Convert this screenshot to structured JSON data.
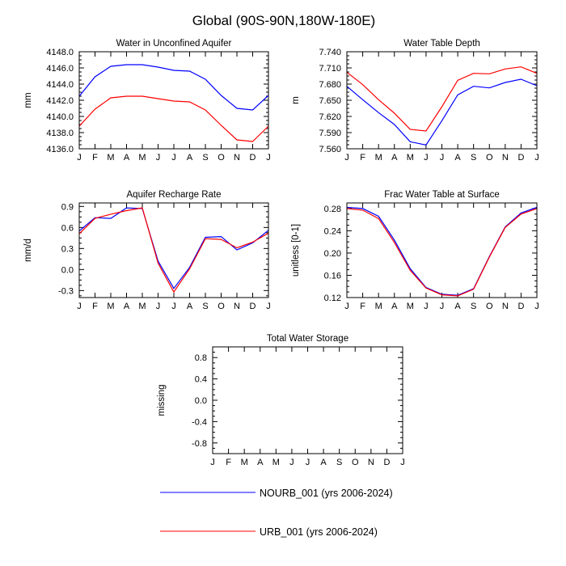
{
  "figure_title": "Global (90S-90N,180W-180E)",
  "months": [
    "J",
    "F",
    "M",
    "A",
    "M",
    "J",
    "J",
    "A",
    "S",
    "O",
    "N",
    "D",
    "J"
  ],
  "legend": [
    {
      "label": "NOURB_001 (yrs 2006-2024)",
      "color": "#0000ff"
    },
    {
      "label": "URB_001 (yrs 2006-2024)",
      "color": "#ff0000"
    }
  ],
  "chart_data": [
    {
      "id": "aquifer",
      "type": "line",
      "title": "Water in Unconfined Aquifer",
      "ylabel": "mm",
      "ylim": [
        4136.0,
        4148.0
      ],
      "yticks": [
        4136.0,
        4138.0,
        4140.0,
        4142.0,
        4144.0,
        4146.0,
        4148.0
      ],
      "ytick_labels": [
        "4136.0",
        "4138.0",
        "4140.0",
        "4142.0",
        "4144.0",
        "4146.0",
        "4148.0"
      ],
      "series": [
        {
          "name": "NOURB_001",
          "color": "#0000ff",
          "values": [
            4142.5,
            4144.9,
            4146.2,
            4146.4,
            4146.4,
            4146.1,
            4145.7,
            4145.6,
            4144.6,
            4142.6,
            4141.0,
            4140.8,
            4142.6
          ]
        },
        {
          "name": "URB_001",
          "color": "#ff0000",
          "values": [
            4138.8,
            4140.9,
            4142.3,
            4142.5,
            4142.5,
            4142.2,
            4141.9,
            4141.8,
            4140.8,
            4138.9,
            4137.1,
            4136.9,
            4138.8
          ]
        }
      ]
    },
    {
      "id": "wtd",
      "type": "line",
      "title": "Water Table Depth",
      "ylabel": "m",
      "ylim": [
        7.56,
        7.74
      ],
      "yticks": [
        7.56,
        7.59,
        7.62,
        7.65,
        7.68,
        7.71,
        7.74
      ],
      "ytick_labels": [
        "7.560",
        "7.590",
        "7.620",
        "7.650",
        "7.680",
        "7.710",
        "7.740"
      ],
      "series": [
        {
          "name": "NOURB_001",
          "color": "#0000ff",
          "values": [
            7.676,
            7.651,
            7.627,
            7.605,
            7.573,
            7.567,
            7.612,
            7.66,
            7.676,
            7.673,
            7.683,
            7.689,
            7.677
          ]
        },
        {
          "name": "URB_001",
          "color": "#ff0000",
          "values": [
            7.702,
            7.679,
            7.651,
            7.626,
            7.596,
            7.593,
            7.638,
            7.687,
            7.7,
            7.699,
            7.708,
            7.712,
            7.7
          ]
        }
      ]
    },
    {
      "id": "recharge",
      "type": "line",
      "title": "Aquifer Recharge Rate",
      "ylabel": "mm/d",
      "ylim": [
        -0.4,
        0.95
      ],
      "yticks": [
        -0.3,
        0.0,
        0.3,
        0.6,
        0.9
      ],
      "ytick_labels": [
        "-0.3",
        "0.0",
        "0.3",
        "0.6",
        "0.9"
      ],
      "series": [
        {
          "name": "NOURB_001",
          "color": "#0000ff",
          "values": [
            0.55,
            0.74,
            0.73,
            0.88,
            0.87,
            0.12,
            -0.27,
            0.03,
            0.46,
            0.47,
            0.28,
            0.38,
            0.56
          ]
        },
        {
          "name": "URB_001",
          "color": "#ff0000",
          "values": [
            0.51,
            0.73,
            0.79,
            0.84,
            0.88,
            0.09,
            -0.32,
            0.01,
            0.44,
            0.43,
            0.31,
            0.39,
            0.52
          ]
        }
      ]
    },
    {
      "id": "frac",
      "type": "line",
      "title": "Frac Water Table at Surface",
      "ylabel": "unitless [0-1]",
      "ylim": [
        0.12,
        0.29
      ],
      "yticks": [
        0.12,
        0.16,
        0.2,
        0.24,
        0.28
      ],
      "ytick_labels": [
        "0.12",
        "0.16",
        "0.20",
        "0.24",
        "0.28"
      ],
      "series": [
        {
          "name": "NOURB_001",
          "color": "#0000ff",
          "values": [
            0.282,
            0.28,
            0.266,
            0.223,
            0.172,
            0.138,
            0.126,
            0.124,
            0.136,
            0.194,
            0.247,
            0.272,
            0.282
          ]
        },
        {
          "name": "URB_001",
          "color": "#ff0000",
          "values": [
            0.28,
            0.277,
            0.262,
            0.219,
            0.169,
            0.137,
            0.125,
            0.123,
            0.135,
            0.193,
            0.246,
            0.27,
            0.28
          ]
        }
      ]
    },
    {
      "id": "tws",
      "type": "line",
      "title": "Total Water Storage",
      "ylabel": "missing",
      "ylim": [
        -1.0,
        1.0
      ],
      "yticks": [
        -0.8,
        -0.4,
        0.0,
        0.4,
        0.8
      ],
      "ytick_labels": [
        "-0.8",
        "-0.4",
        "0.0",
        "0.4",
        "0.8"
      ],
      "series": []
    }
  ]
}
